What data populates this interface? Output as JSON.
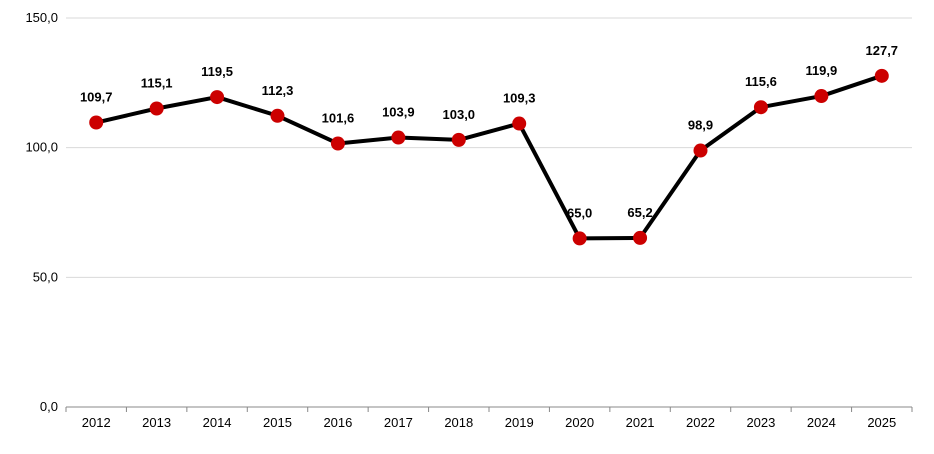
{
  "chart_data": {
    "type": "line",
    "title": "",
    "xlabel": "",
    "ylabel": "",
    "categories": [
      "2012",
      "2013",
      "2014",
      "2015",
      "2016",
      "2017",
      "2018",
      "2019",
      "2020",
      "2021",
      "2022",
      "2023",
      "2024",
      "2025"
    ],
    "series": [
      {
        "values": [
          109.7,
          115.1,
          119.5,
          112.3,
          101.6,
          103.9,
          103.0,
          109.3,
          65.0,
          65.2,
          98.9,
          115.6,
          119.9,
          127.7
        ],
        "labels": [
          "109,7",
          "115,1",
          "119,5",
          "112,3",
          "101,6",
          "103,9",
          "103,0",
          "109,3",
          "65,0",
          "65,2",
          "98,9",
          "115,6",
          "119,9",
          "127,7"
        ],
        "line_color": "#000000",
        "marker_color": "#cc0000"
      }
    ],
    "ylim": [
      0,
      150
    ],
    "y_ticks": [
      0,
      50,
      100,
      150
    ],
    "y_tick_labels": [
      "0,0",
      "50,0",
      "100,0",
      "150,0"
    ],
    "grid": true,
    "grid_color": "#d9d9d9",
    "legend": "none"
  }
}
